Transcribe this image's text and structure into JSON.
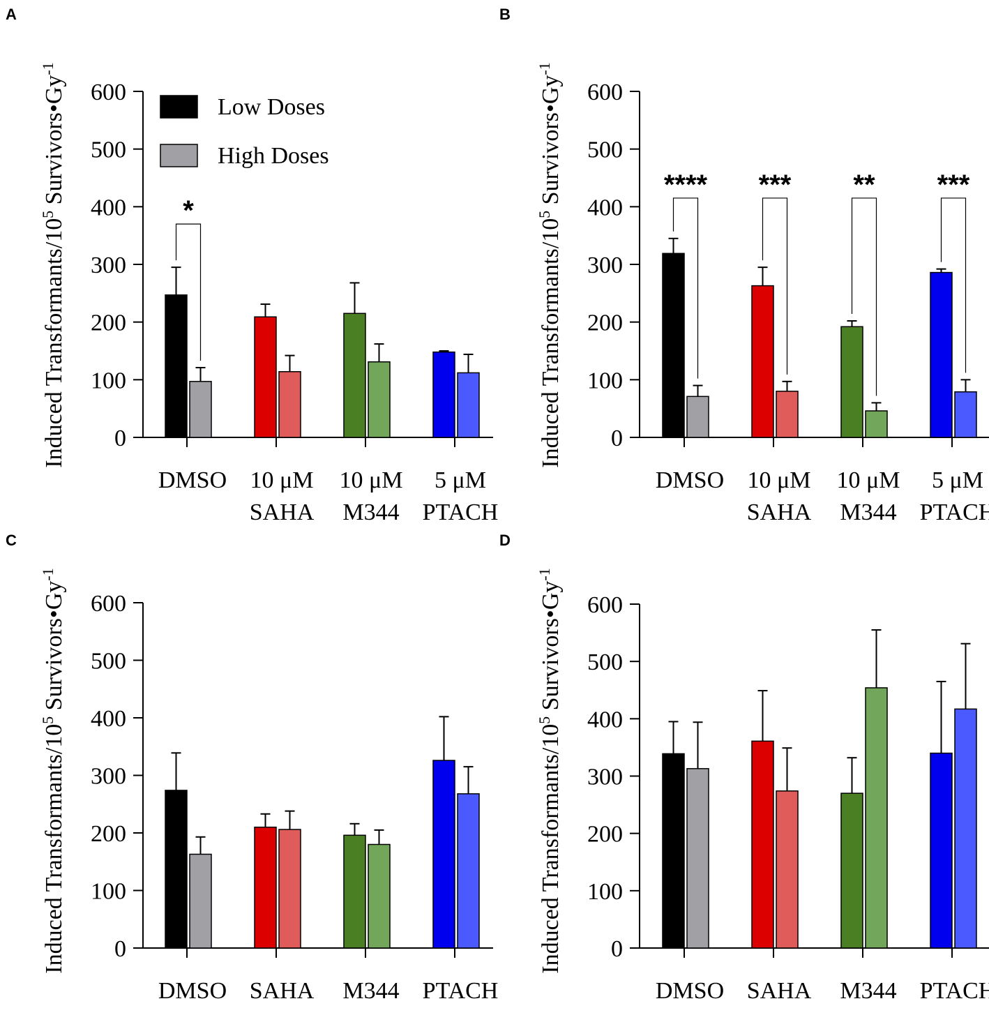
{
  "figure": {
    "y_axis_label_main": "Induced Transformants/10",
    "y_axis_label_sup5": "5",
    "y_axis_label_rest": " Survivors•Gy",
    "y_axis_label_sup": "-1",
    "legend": [
      {
        "label": "Low Doses",
        "color": "#000000"
      },
      {
        "label": "High Doses",
        "color": "#a0a0a5"
      }
    ]
  },
  "chart_data": [
    {
      "panel": "A",
      "type": "bar",
      "categories": [
        [
          "DMSO"
        ],
        [
          "10 μM",
          "SAHA"
        ],
        [
          "10 μM",
          "M344"
        ],
        [
          "5 μM",
          "PTACH"
        ]
      ],
      "series": [
        {
          "name": "Low Doses",
          "values": [
            247,
            209,
            215,
            148
          ],
          "errors": [
            48,
            22,
            53,
            2
          ],
          "colors": [
            "#000000",
            "#dd0000",
            "#4a7f24",
            "#0000ee"
          ]
        },
        {
          "name": "High Doses",
          "values": [
            97,
            114,
            131,
            112
          ],
          "errors": [
            24,
            28,
            31,
            32
          ],
          "colors": [
            "#a0a0a5",
            "#e05c5a",
            "#72a65a",
            "#4a5aff"
          ]
        }
      ],
      "ylim": [
        0,
        600
      ],
      "yticks": [
        0,
        100,
        200,
        300,
        400,
        500,
        600
      ],
      "significance": [
        {
          "group": 0,
          "label": "*",
          "bracket_top": 370
        }
      ],
      "show_legend": true
    },
    {
      "panel": "B",
      "type": "bar",
      "categories": [
        [
          "DMSO"
        ],
        [
          "10 μM",
          "SAHA"
        ],
        [
          "10 μM",
          "M344"
        ],
        [
          "5 μM",
          "PTACH"
        ]
      ],
      "series": [
        {
          "name": "Low Doses",
          "values": [
            319,
            263,
            192,
            286
          ],
          "errors": [
            26,
            32,
            10,
            6
          ],
          "colors": [
            "#000000",
            "#dd0000",
            "#4a7f24",
            "#0000ee"
          ]
        },
        {
          "name": "High Doses",
          "values": [
            71,
            80,
            46,
            79
          ],
          "errors": [
            19,
            17,
            14,
            21
          ],
          "colors": [
            "#a0a0a5",
            "#e05c5a",
            "#72a65a",
            "#4a5aff"
          ]
        }
      ],
      "ylim": [
        0,
        600
      ],
      "yticks": [
        0,
        100,
        200,
        300,
        400,
        500,
        600
      ],
      "significance": [
        {
          "group": 0,
          "label": "****",
          "bracket_top": 415
        },
        {
          "group": 1,
          "label": "***",
          "bracket_top": 415
        },
        {
          "group": 2,
          "label": "**",
          "bracket_top": 415
        },
        {
          "group": 3,
          "label": "***",
          "bracket_top": 415
        }
      ],
      "show_legend": false
    },
    {
      "panel": "C",
      "type": "bar",
      "categories": [
        [
          "DMSO"
        ],
        [
          "SAHA"
        ],
        [
          "M344"
        ],
        [
          "PTACH"
        ]
      ],
      "series": [
        {
          "name": "Low Doses",
          "values": [
            274,
            210,
            196,
            326
          ],
          "errors": [
            65,
            23,
            20,
            76
          ],
          "colors": [
            "#000000",
            "#dd0000",
            "#4a7f24",
            "#0000ee"
          ]
        },
        {
          "name": "High Doses",
          "values": [
            163,
            206,
            180,
            268
          ],
          "errors": [
            30,
            32,
            25,
            47
          ],
          "colors": [
            "#a0a0a5",
            "#e05c5a",
            "#72a65a",
            "#4a5aff"
          ]
        }
      ],
      "ylim": [
        0,
        600
      ],
      "yticks": [
        0,
        100,
        200,
        300,
        400,
        500,
        600
      ],
      "significance": [],
      "show_legend": false
    },
    {
      "panel": "D",
      "type": "bar",
      "categories": [
        [
          "DMSO"
        ],
        [
          "SAHA"
        ],
        [
          "M344"
        ],
        [
          "PTACH"
        ]
      ],
      "series": [
        {
          "name": "Low Doses",
          "values": [
            339,
            361,
            270,
            340
          ],
          "errors": [
            56,
            88,
            62,
            125
          ],
          "colors": [
            "#000000",
            "#dd0000",
            "#4a7f24",
            "#0000ee"
          ]
        },
        {
          "name": "High Doses",
          "values": [
            313,
            274,
            454,
            417
          ],
          "errors": [
            81,
            75,
            101,
            114
          ],
          "colors": [
            "#a0a0a5",
            "#e05c5a",
            "#72a65a",
            "#4a5aff"
          ]
        }
      ],
      "ylim": [
        0,
        600
      ],
      "yticks": [
        0,
        100,
        200,
        300,
        400,
        500,
        600
      ],
      "significance": [],
      "show_legend": false
    }
  ]
}
